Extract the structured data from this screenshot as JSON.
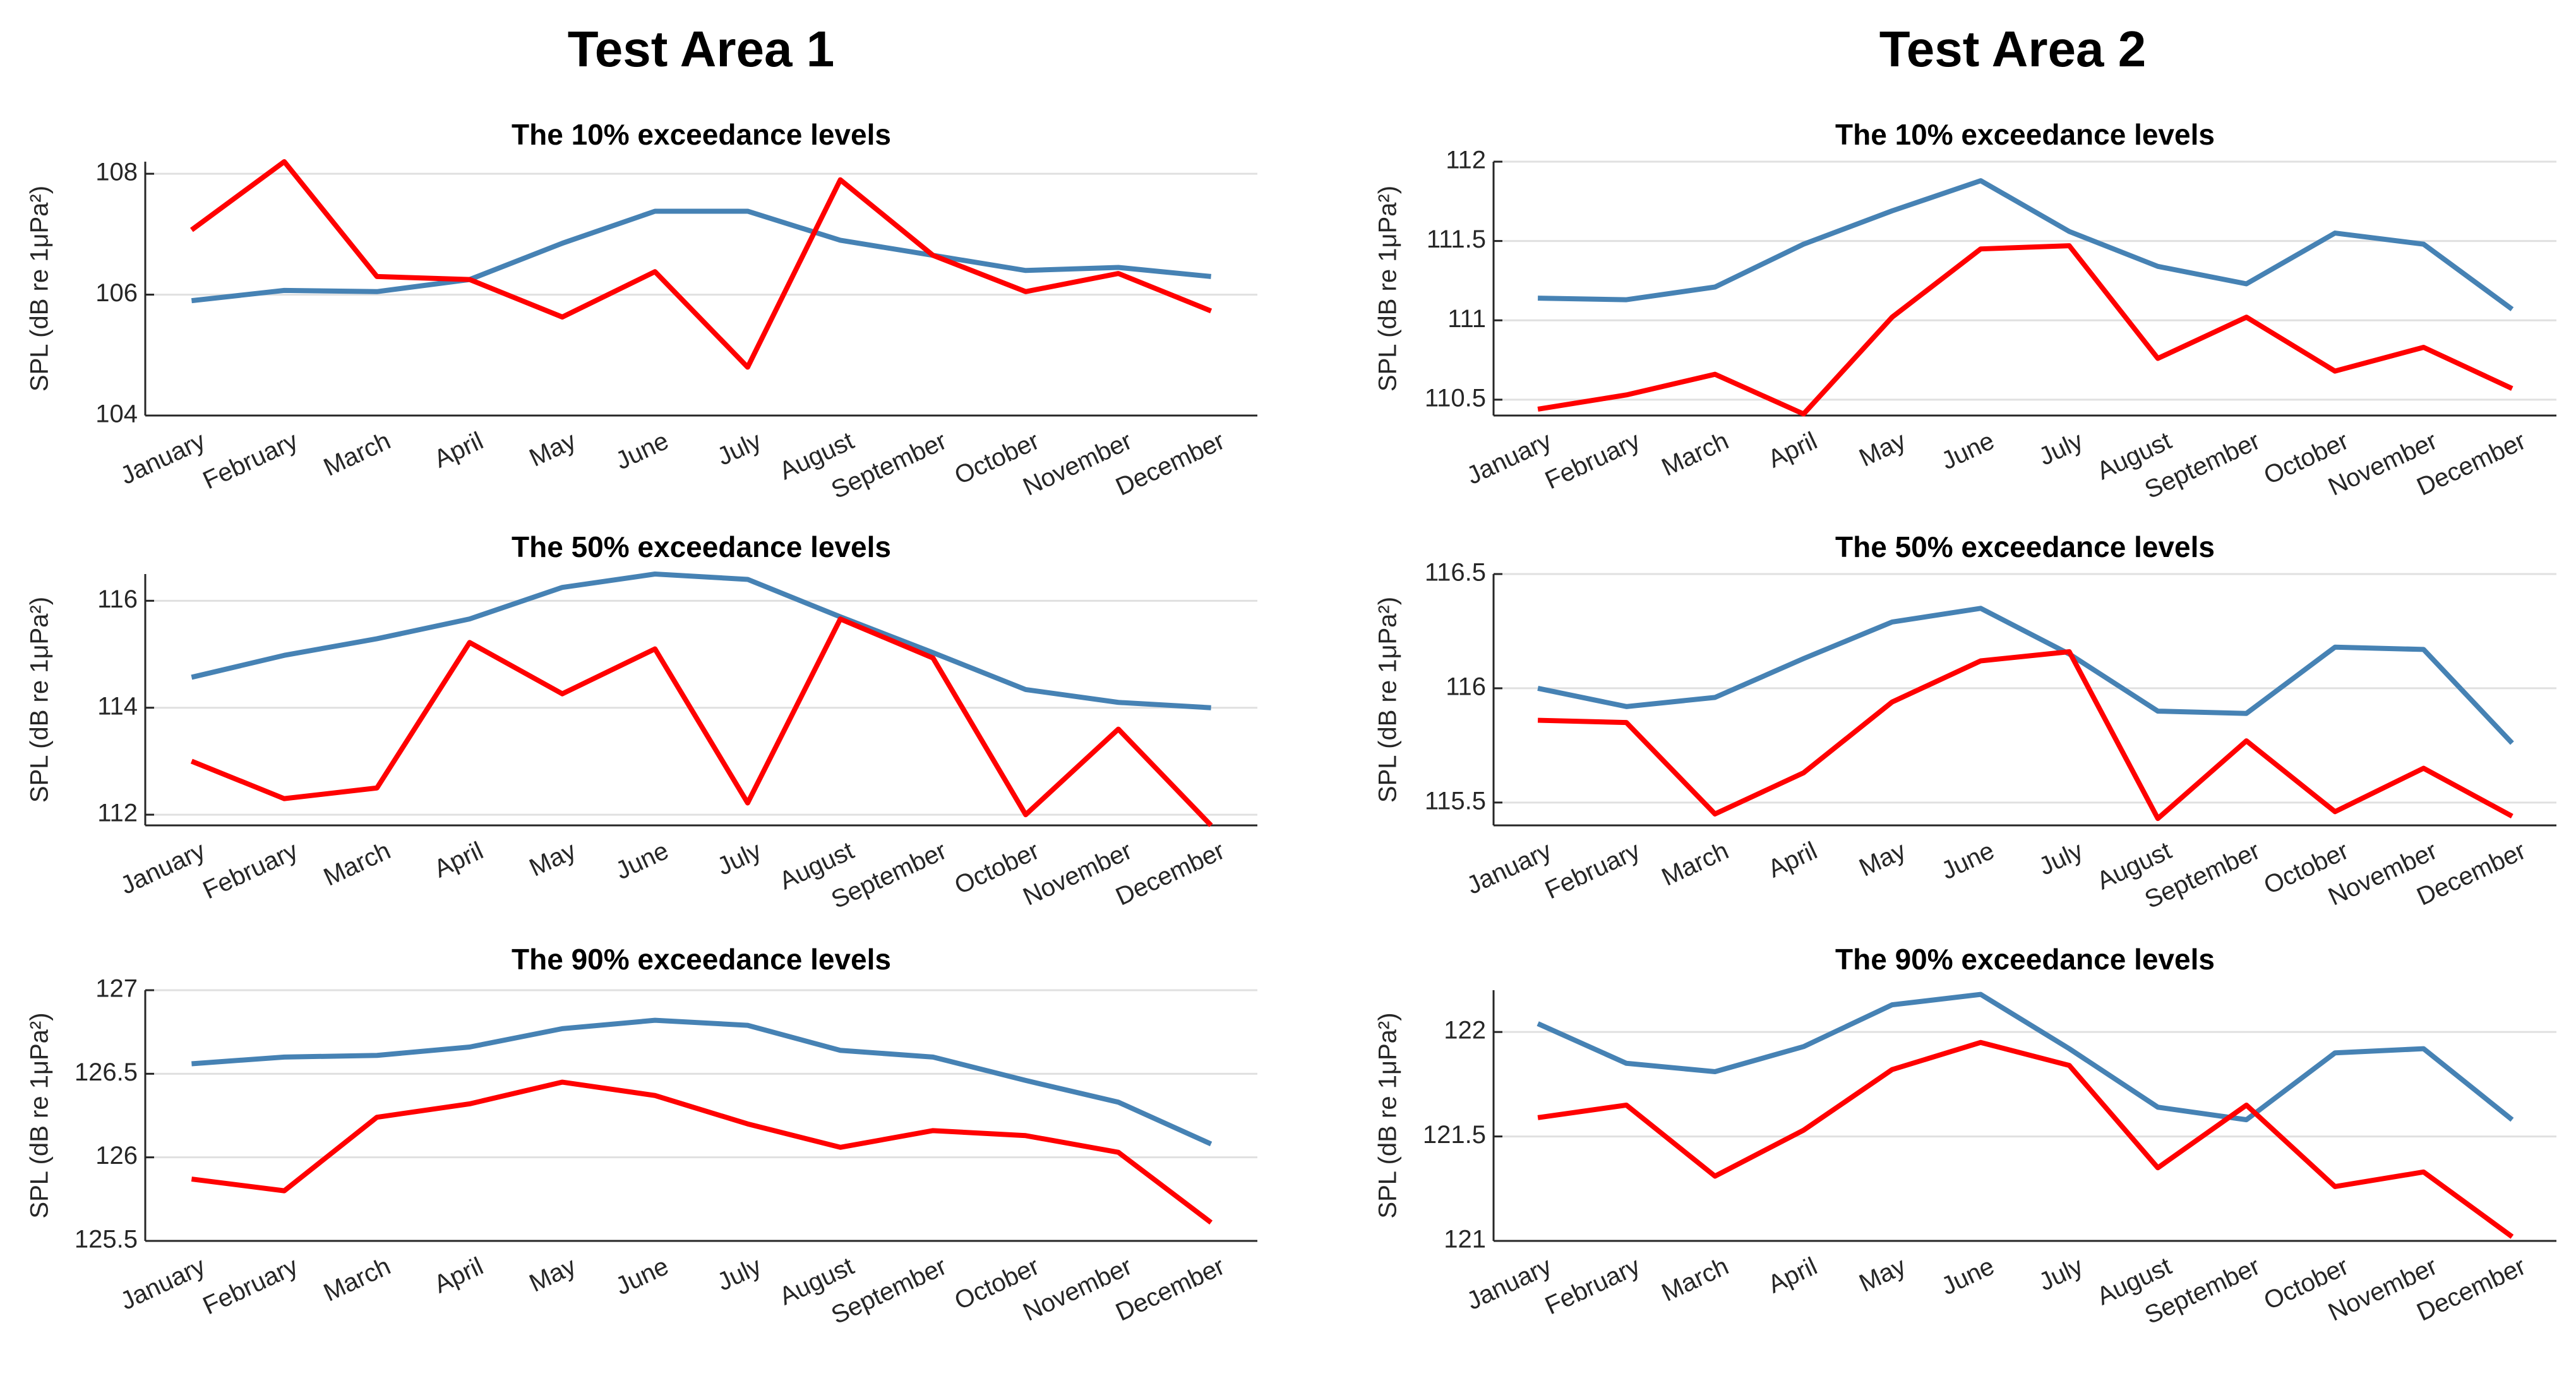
{
  "headings": [
    "Test Area 1",
    "Test Area 2"
  ],
  "chart_data": [
    {
      "type": "line",
      "title": "The 10% exceedance levels",
      "y_label": "SPL (dB re 1μPa²)",
      "categories": [
        "January",
        "February",
        "March",
        "April",
        "May",
        "June",
        "July",
        "August",
        "September",
        "October",
        "November",
        "December"
      ],
      "series": [
        {
          "color": "#4682b4",
          "values": [
            105.9,
            106.07,
            106.05,
            106.25,
            106.85,
            107.38,
            107.38,
            106.9,
            106.65,
            106.4,
            106.45,
            106.3
          ]
        },
        {
          "color": "#ff0000",
          "values": [
            107.07,
            108.2,
            106.3,
            106.25,
            105.63,
            106.38,
            104.8,
            107.9,
            106.65,
            106.05,
            106.35,
            105.73
          ]
        }
      ],
      "ylim": [
        104,
        108.2
      ],
      "yticks": [
        104,
        106,
        108
      ],
      "grid": true
    },
    {
      "type": "line",
      "title": "The 50% exceedance levels",
      "y_label": "SPL (dB re 1μPa²)",
      "categories": [
        "January",
        "February",
        "March",
        "April",
        "May",
        "June",
        "July",
        "August",
        "September",
        "October",
        "November",
        "December"
      ],
      "series": [
        {
          "color": "#4682b4",
          "values": [
            114.57,
            114.98,
            115.29,
            115.66,
            116.25,
            116.5,
            116.4,
            115.7,
            115.03,
            114.34,
            114.1,
            114.0
          ]
        },
        {
          "color": "#ff0000",
          "values": [
            113.0,
            112.3,
            112.5,
            115.22,
            114.26,
            115.1,
            112.22,
            115.66,
            114.93,
            112.0,
            113.6,
            111.8
          ]
        }
      ],
      "ylim": [
        111.8,
        116.5
      ],
      "yticks": [
        112,
        114,
        116
      ],
      "grid": true
    },
    {
      "type": "line",
      "title": "The 90% exceedance levels",
      "y_label": "SPL (dB re 1μPa²)",
      "categories": [
        "January",
        "February",
        "March",
        "April",
        "May",
        "June",
        "July",
        "August",
        "September",
        "October",
        "November",
        "December"
      ],
      "series": [
        {
          "color": "#4682b4",
          "values": [
            126.56,
            126.6,
            126.61,
            126.66,
            126.77,
            126.82,
            126.79,
            126.64,
            126.6,
            126.46,
            126.33,
            126.08
          ]
        },
        {
          "color": "#ff0000",
          "values": [
            125.87,
            125.8,
            126.24,
            126.32,
            126.45,
            126.37,
            126.2,
            126.06,
            126.16,
            126.13,
            126.03,
            125.61
          ]
        }
      ],
      "ylim": [
        125.5,
        127
      ],
      "yticks": [
        125.5,
        126,
        126.5,
        127
      ],
      "grid": true
    },
    {
      "type": "line",
      "title": "The 10% exceedance levels",
      "y_label": "SPL (dB re 1μPa²)",
      "categories": [
        "January",
        "February",
        "March",
        "April",
        "May",
        "June",
        "July",
        "August",
        "September",
        "October",
        "November",
        "December"
      ],
      "series": [
        {
          "color": "#4682b4",
          "values": [
            111.14,
            111.13,
            111.21,
            111.48,
            111.69,
            111.88,
            111.56,
            111.34,
            111.23,
            111.55,
            111.48,
            111.07
          ]
        },
        {
          "color": "#ff0000",
          "values": [
            110.44,
            110.53,
            110.66,
            110.41,
            111.02,
            111.45,
            111.47,
            110.76,
            111.02,
            110.68,
            110.83,
            110.57
          ]
        }
      ],
      "ylim": [
        110.4,
        112
      ],
      "yticks": [
        110.5,
        111,
        111.5,
        112
      ],
      "grid": true
    },
    {
      "type": "line",
      "title": "The 50% exceedance levels",
      "y_label": "SPL (dB re 1μPa²)",
      "categories": [
        "January",
        "February",
        "March",
        "April",
        "May",
        "June",
        "July",
        "August",
        "September",
        "October",
        "November",
        "December"
      ],
      "series": [
        {
          "color": "#4682b4",
          "values": [
            116.0,
            115.92,
            115.96,
            116.13,
            116.29,
            116.35,
            116.15,
            115.9,
            115.89,
            116.18,
            116.17,
            115.76
          ]
        },
        {
          "color": "#ff0000",
          "values": [
            115.86,
            115.85,
            115.45,
            115.63,
            115.94,
            116.12,
            116.16,
            115.43,
            115.77,
            115.46,
            115.65,
            115.44
          ]
        }
      ],
      "ylim": [
        115.4,
        116.5
      ],
      "yticks": [
        115.5,
        116,
        116.5
      ],
      "grid": true
    },
    {
      "type": "line",
      "title": "The 90% exceedance levels",
      "y_label": "SPL (dB re 1μPa²)",
      "categories": [
        "January",
        "February",
        "March",
        "April",
        "May",
        "June",
        "July",
        "August",
        "September",
        "October",
        "November",
        "December"
      ],
      "series": [
        {
          "color": "#4682b4",
          "values": [
            122.04,
            121.85,
            121.81,
            121.93,
            122.13,
            122.18,
            121.92,
            121.64,
            121.58,
            121.9,
            121.92,
            121.58
          ]
        },
        {
          "color": "#ff0000",
          "values": [
            121.59,
            121.65,
            121.31,
            121.53,
            121.82,
            121.95,
            121.84,
            121.35,
            121.65,
            121.26,
            121.33,
            121.02
          ]
        }
      ],
      "ylim": [
        121,
        122.2
      ],
      "yticks": [
        121,
        121.5,
        122
      ],
      "grid": true
    }
  ]
}
